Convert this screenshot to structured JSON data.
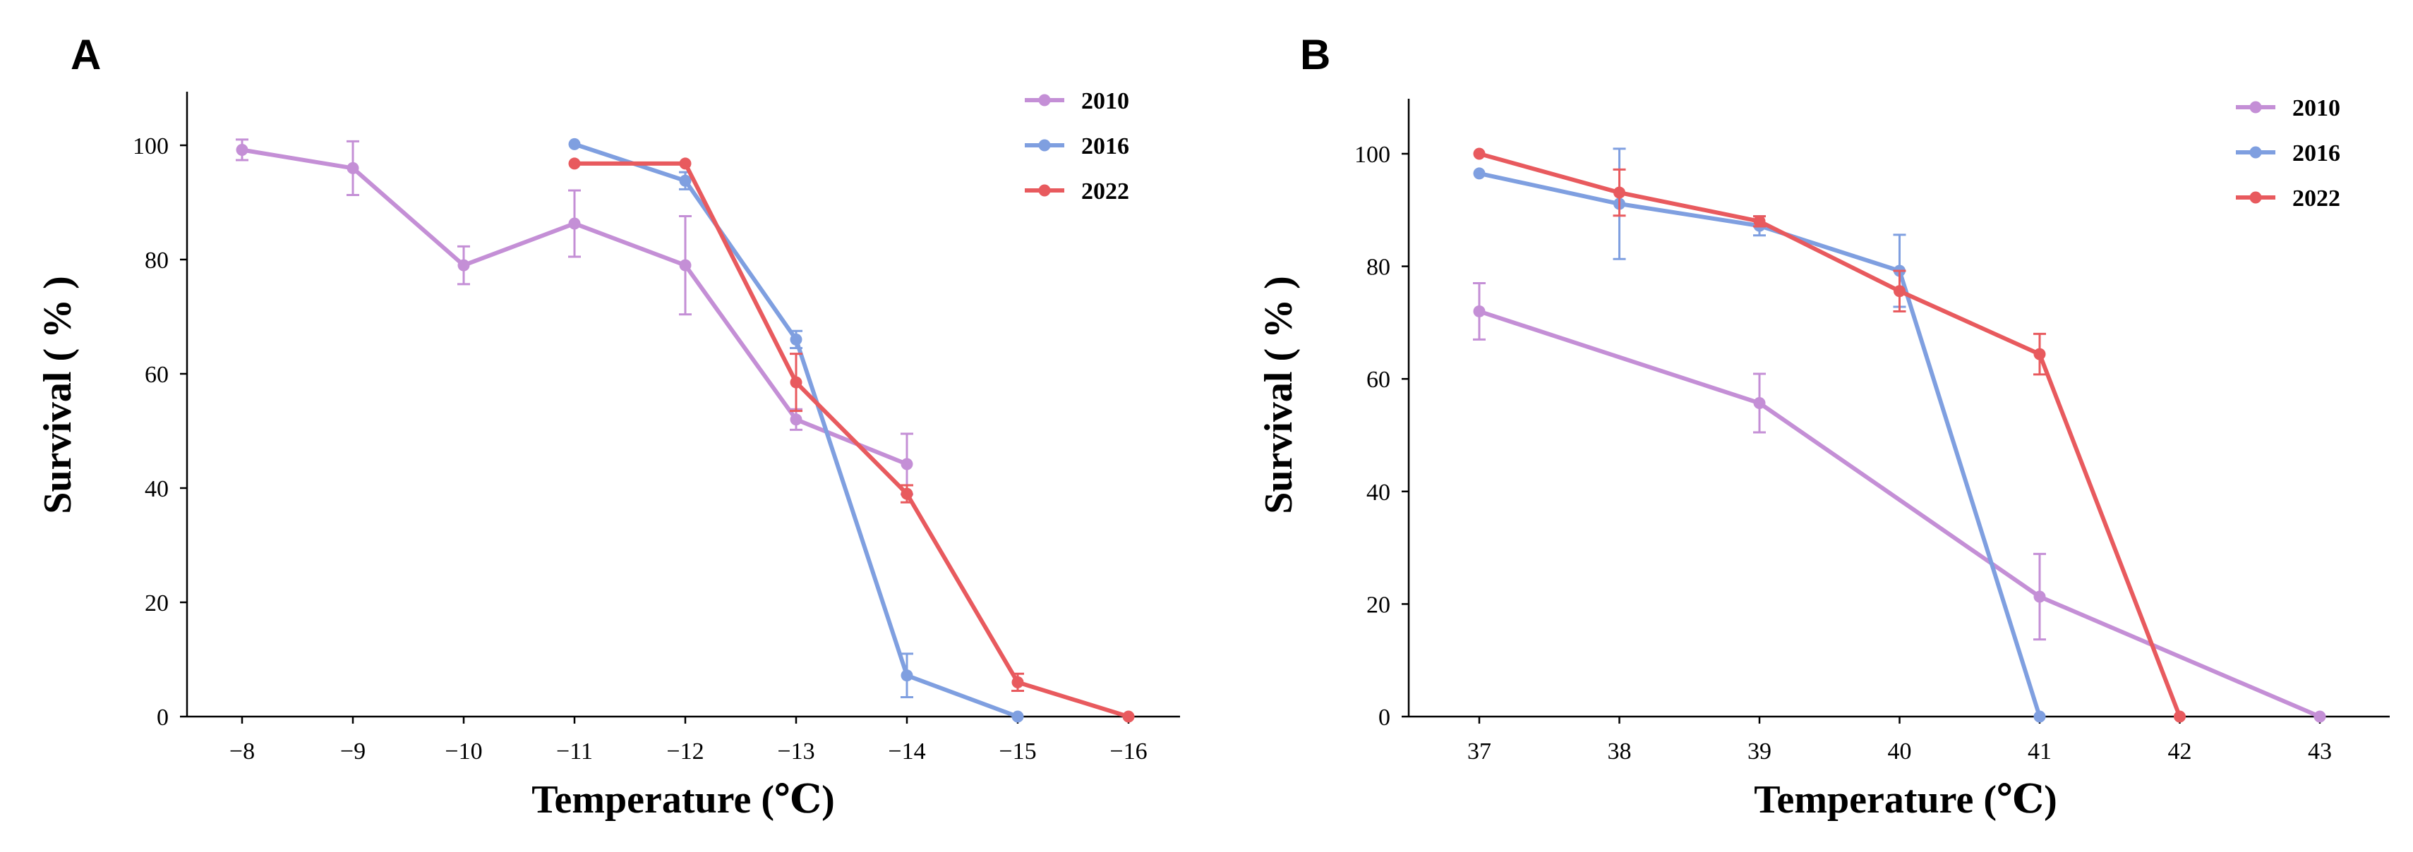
{
  "colors": {
    "2010": "#c48fd6",
    "2016": "#7f9fe0",
    "2022": "#e85a5e"
  },
  "chart_data": [
    {
      "panel": "A",
      "type": "line",
      "xlabel": "Temperature (℃)",
      "ylabel": "Survival ( % )",
      "categories": [
        "−8",
        "−9",
        "−10",
        "−11",
        "−12",
        "−13",
        "−14",
        "−15",
        "−16"
      ],
      "ylim": [
        0,
        110
      ],
      "yticks": [
        0,
        20,
        40,
        60,
        80,
        100
      ],
      "grid": false,
      "legend": "top-right",
      "series": [
        {
          "name": "2010",
          "points": [
            {
              "x": "−8",
              "y": 99.2,
              "err": 1.8
            },
            {
              "x": "−9",
              "y": 96,
              "err": 4.7
            },
            {
              "x": "−10",
              "y": 79,
              "err": 3.3
            },
            {
              "x": "−11",
              "y": 86.3,
              "err": 5.8
            },
            {
              "x": "−12",
              "y": 79,
              "err": 8.6
            },
            {
              "x": "−13",
              "y": 52,
              "err": 1.8
            },
            {
              "x": "−14",
              "y": 44.2,
              "err": 5.3
            }
          ]
        },
        {
          "name": "2016",
          "points": [
            {
              "x": "−11",
              "y": 100.2,
              "err": 0
            },
            {
              "x": "−12",
              "y": 93.8,
              "err": 1.5
            },
            {
              "x": "−13",
              "y": 66,
              "err": 1.5
            },
            {
              "x": "−14",
              "y": 7.2,
              "err": 3.8
            },
            {
              "x": "−15",
              "y": 0,
              "err": 0
            }
          ]
        },
        {
          "name": "2022",
          "points": [
            {
              "x": "−11",
              "y": 96.8,
              "err": 0
            },
            {
              "x": "−12",
              "y": 96.8,
              "err": 0
            },
            {
              "x": "−13",
              "y": 58.5,
              "err": 5
            },
            {
              "x": "−14",
              "y": 39,
              "err": 1.5
            },
            {
              "x": "−15",
              "y": 6,
              "err": 1.5
            },
            {
              "x": "−16",
              "y": 0,
              "err": 0
            }
          ]
        }
      ]
    },
    {
      "panel": "B",
      "type": "line",
      "xlabel": "Temperature (℃)",
      "ylabel": "Survival ( % )",
      "categories": [
        "37",
        "38",
        "39",
        "40",
        "41",
        "42",
        "43"
      ],
      "ylim": [
        0,
        110
      ],
      "yticks": [
        0,
        20,
        40,
        60,
        80,
        100
      ],
      "grid": false,
      "legend": "top-right",
      "series": [
        {
          "name": "2010",
          "points": [
            {
              "x": "37",
              "y": 72,
              "err": 5
            },
            {
              "x": "39",
              "y": 55.7,
              "err": 5.2
            },
            {
              "x": "41",
              "y": 21.3,
              "err": 7.6
            },
            {
              "x": "43",
              "y": 0,
              "err": 0
            }
          ]
        },
        {
          "name": "2016",
          "points": [
            {
              "x": "37",
              "y": 96.5,
              "err": 0
            },
            {
              "x": "38",
              "y": 91.1,
              "err": 9.8
            },
            {
              "x": "39",
              "y": 87.2,
              "err": 1.7
            },
            {
              "x": "40",
              "y": 79.2,
              "err": 6.4
            },
            {
              "x": "41",
              "y": 0,
              "err": 0
            }
          ]
        },
        {
          "name": "2022",
          "points": [
            {
              "x": "37",
              "y": 100,
              "err": 0
            },
            {
              "x": "38",
              "y": 93.1,
              "err": 4.1
            },
            {
              "x": "39",
              "y": 88,
              "err": 0.9
            },
            {
              "x": "40",
              "y": 75.6,
              "err": 3.6
            },
            {
              "x": "41",
              "y": 64.4,
              "err": 3.6
            },
            {
              "x": "42",
              "y": 0,
              "err": 0
            }
          ]
        }
      ]
    }
  ]
}
